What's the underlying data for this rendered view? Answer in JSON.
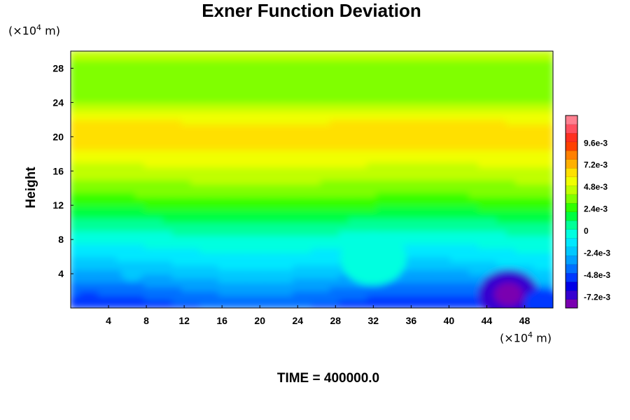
{
  "chart_data": {
    "type": "heatmap",
    "title": "Exner Function Deviation",
    "ylabel": "Height",
    "y_unit_prefix": "(×10",
    "y_unit_exp": "4",
    "y_unit_suffix": " m)",
    "x_unit_prefix": "(×10",
    "x_unit_exp": "4",
    "x_unit_suffix": " m)",
    "xlim": [
      0,
      51
    ],
    "ylim": [
      0,
      30
    ],
    "x_ticks": [
      4,
      8,
      12,
      16,
      20,
      24,
      28,
      32,
      36,
      40,
      44,
      48
    ],
    "y_ticks": [
      4,
      8,
      12,
      16,
      20,
      24,
      28
    ],
    "colorbar": {
      "range": [
        -0.0084,
        0.0126
      ],
      "tick_values": [
        0.0096,
        0.0072,
        0.0048,
        0.0024,
        0,
        -0.0024,
        -0.0048,
        -0.0072
      ],
      "tick_labels": [
        "9.6e-3",
        "7.2e-3",
        "4.8e-3",
        "2.4e-3",
        "0",
        "-2.4e-3",
        "-4.8e-3",
        "-7.2e-3"
      ]
    },
    "footer": "TIME = 400000.0"
  },
  "colors": {
    "palette": [
      "#7a00b0",
      "#3500d0",
      "#0000e6",
      "#0038ff",
      "#0070ff",
      "#00a0ff",
      "#00c8ff",
      "#00e8ff",
      "#00ffe0",
      "#00ff98",
      "#00ff40",
      "#30ff00",
      "#80ff00",
      "#c0ff00",
      "#f0ff00",
      "#ffe000",
      "#ffb000",
      "#ff8000",
      "#ff4000",
      "#ff3020",
      "#ff5060",
      "#ff8090"
    ]
  }
}
